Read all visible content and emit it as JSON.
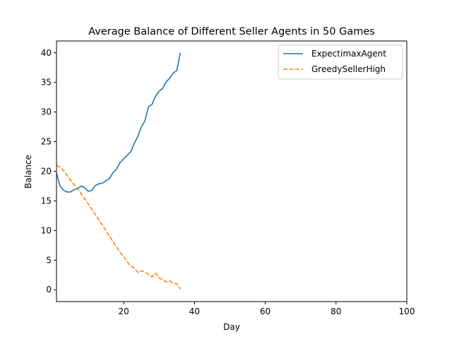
{
  "chart_data": {
    "type": "line",
    "title": "Average Balance of Different Seller Agents in 50 Games",
    "xlabel": "Day",
    "ylabel": "Balance",
    "xlim": [
      1,
      100
    ],
    "ylim": [
      -2,
      42
    ],
    "xticks": [
      20,
      40,
      60,
      80,
      100
    ],
    "yticks": [
      0,
      5,
      10,
      15,
      20,
      25,
      30,
      35,
      40
    ],
    "grid": false,
    "legend": "top-right",
    "series": [
      {
        "name": "ExpectimaxAgent",
        "color": "#1f77b4",
        "style": "solid",
        "x": [
          1,
          2,
          3,
          4,
          5,
          6,
          7,
          8,
          9,
          10,
          11,
          12,
          13,
          14,
          15,
          16,
          17,
          18,
          19,
          20,
          21,
          22,
          23,
          24,
          25,
          26,
          27,
          28,
          29,
          30,
          31,
          32,
          33,
          34,
          35,
          36
        ],
        "y": [
          19.7,
          17.5,
          16.8,
          16.5,
          16.5,
          16.9,
          17.1,
          17.5,
          17.2,
          16.6,
          16.8,
          17.6,
          17.9,
          18.0,
          18.4,
          18.8,
          19.8,
          20.4,
          21.5,
          22.1,
          22.7,
          23.3,
          24.7,
          25.9,
          27.5,
          28.5,
          30.9,
          31.3,
          32.7,
          33.5,
          34.0,
          35.1,
          35.7,
          36.6,
          37.0,
          40.0
        ]
      },
      {
        "name": "GreedySellerHigh",
        "color": "#ff7f0e",
        "style": "dashed",
        "x": [
          1,
          2,
          3,
          4,
          5,
          6,
          7,
          8,
          9,
          10,
          11,
          12,
          13,
          14,
          15,
          16,
          17,
          18,
          19,
          20,
          21,
          22,
          23,
          24,
          25,
          26,
          27,
          28,
          29,
          30,
          31,
          32,
          33,
          34,
          35,
          36
        ],
        "y": [
          21.0,
          20.7,
          20.1,
          19.3,
          18.5,
          17.7,
          17.0,
          16.2,
          15.3,
          14.5,
          13.6,
          12.7,
          11.8,
          10.9,
          10.0,
          9.0,
          8.1,
          7.2,
          6.3,
          5.6,
          4.7,
          4.0,
          3.7,
          2.9,
          3.2,
          3.0,
          2.6,
          2.2,
          2.8,
          2.0,
          1.7,
          1.3,
          1.5,
          1.1,
          1.0,
          0.1
        ]
      }
    ]
  }
}
